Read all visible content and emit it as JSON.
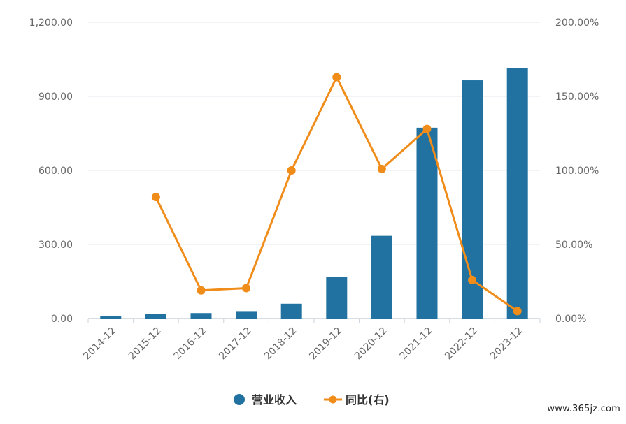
{
  "chart_data": {
    "type": "bar",
    "categories": [
      "2014-12",
      "2015-12",
      "2016-12",
      "2017-12",
      "2018-12",
      "2019-12",
      "2020-12",
      "2021-12",
      "2022-12",
      "2023-12"
    ],
    "series": [
      {
        "name": "营业收入",
        "type": "bar",
        "axis": "left",
        "values": [
          10,
          18,
          22,
          30,
          60,
          167,
          335,
          773,
          965,
          1015
        ]
      },
      {
        "name": "同比(右)",
        "type": "line",
        "axis": "right",
        "values": [
          null,
          82,
          19,
          20.5,
          100,
          163,
          101,
          128,
          26,
          5
        ]
      }
    ],
    "y_left": {
      "min": 0,
      "max": 1200,
      "ticks": [
        "0.00",
        "300.00",
        "600.00",
        "900.00",
        "1,200.00"
      ]
    },
    "y_right": {
      "min": 0,
      "max": 200,
      "ticks": [
        "0.00%",
        "50.00%",
        "100.00%",
        "150.00%",
        "200.00%"
      ]
    },
    "grid": true,
    "legend_position": "bottom-center",
    "colors": {
      "bar": "#2272a1",
      "line": "#f08c1a",
      "grid": "#e3e7ec",
      "axis_line": "#c8d3dc",
      "tick_text": "#666666",
      "legend_text": "#333333"
    }
  },
  "watermark": "www.365jz.com"
}
